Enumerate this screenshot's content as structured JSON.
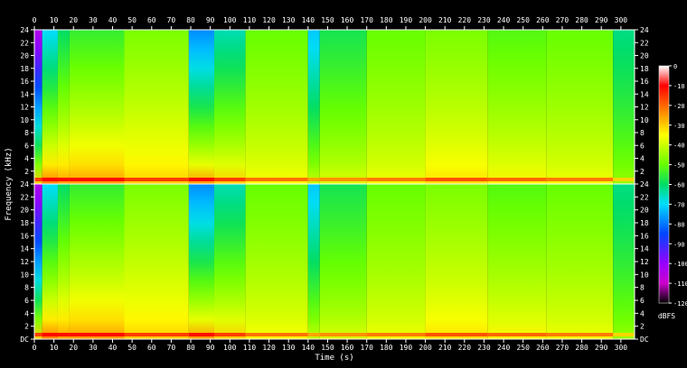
{
  "chart_data": {
    "type": "heatmap",
    "title": "",
    "xlabel": "Time (s)",
    "ylabel": "Frequency (kHz)",
    "colorbar_label": "dBFS",
    "x_range": [
      0,
      307
    ],
    "x_ticks": [
      0,
      10,
      20,
      30,
      40,
      50,
      60,
      70,
      80,
      90,
      100,
      110,
      120,
      130,
      140,
      150,
      160,
      170,
      180,
      190,
      200,
      210,
      220,
      230,
      240,
      250,
      260,
      270,
      280,
      290,
      300
    ],
    "y_range_khz": [
      0,
      24
    ],
    "y_ticks": [
      "DC",
      "2",
      "4",
      "6",
      "8",
      "10",
      "12",
      "14",
      "16",
      "18",
      "20",
      "22",
      "24"
    ],
    "channels": [
      "top",
      "bottom"
    ],
    "colorbar_ticks": [
      0,
      -10,
      -20,
      -30,
      -40,
      -50,
      -60,
      -70,
      -80,
      -90,
      -100,
      -110,
      -120
    ],
    "colorbar_range": [
      -120,
      0
    ],
    "colormap": [
      {
        "db": 0,
        "color": "#ffffff"
      },
      {
        "db": -10,
        "color": "#ff0000"
      },
      {
        "db": -25,
        "color": "#ff9900"
      },
      {
        "db": -35,
        "color": "#ffff00"
      },
      {
        "db": -50,
        "color": "#66ff00"
      },
      {
        "db": -60,
        "color": "#00dd66"
      },
      {
        "db": -70,
        "color": "#00ddff"
      },
      {
        "db": -85,
        "color": "#0044ff"
      },
      {
        "db": -100,
        "color": "#9900ff"
      },
      {
        "db": -110,
        "color": "#cc00cc"
      },
      {
        "db": -120,
        "color": "#000000"
      }
    ],
    "segments": [
      {
        "t0": 0,
        "t1": 4,
        "low_db": -30,
        "high_db": -105
      },
      {
        "t0": 4,
        "t1": 12,
        "low_db": -22,
        "high_db": -70
      },
      {
        "t0": 12,
        "t1": 18,
        "low_db": -25,
        "high_db": -60
      },
      {
        "t0": 18,
        "t1": 46,
        "low_db": -25,
        "high_db": -55
      },
      {
        "t0": 46,
        "t1": 79,
        "low_db": -30,
        "high_db": -48
      },
      {
        "t0": 79,
        "t1": 92,
        "low_db": -25,
        "high_db": -78
      },
      {
        "t0": 92,
        "t1": 108,
        "low_db": -30,
        "high_db": -65
      },
      {
        "t0": 108,
        "t1": 140,
        "low_db": -35,
        "high_db": -50
      },
      {
        "t0": 140,
        "t1": 146,
        "low_db": -40,
        "high_db": -72
      },
      {
        "t0": 146,
        "t1": 170,
        "low_db": -38,
        "high_db": -58
      },
      {
        "t0": 170,
        "t1": 200,
        "low_db": -36,
        "high_db": -50
      },
      {
        "t0": 200,
        "t1": 232,
        "low_db": -32,
        "high_db": -48
      },
      {
        "t0": 232,
        "t1": 262,
        "low_db": -34,
        "high_db": -52
      },
      {
        "t0": 262,
        "t1": 296,
        "low_db": -36,
        "high_db": -50
      },
      {
        "t0": 296,
        "t1": 307,
        "low_db": -45,
        "high_db": -62
      }
    ]
  }
}
